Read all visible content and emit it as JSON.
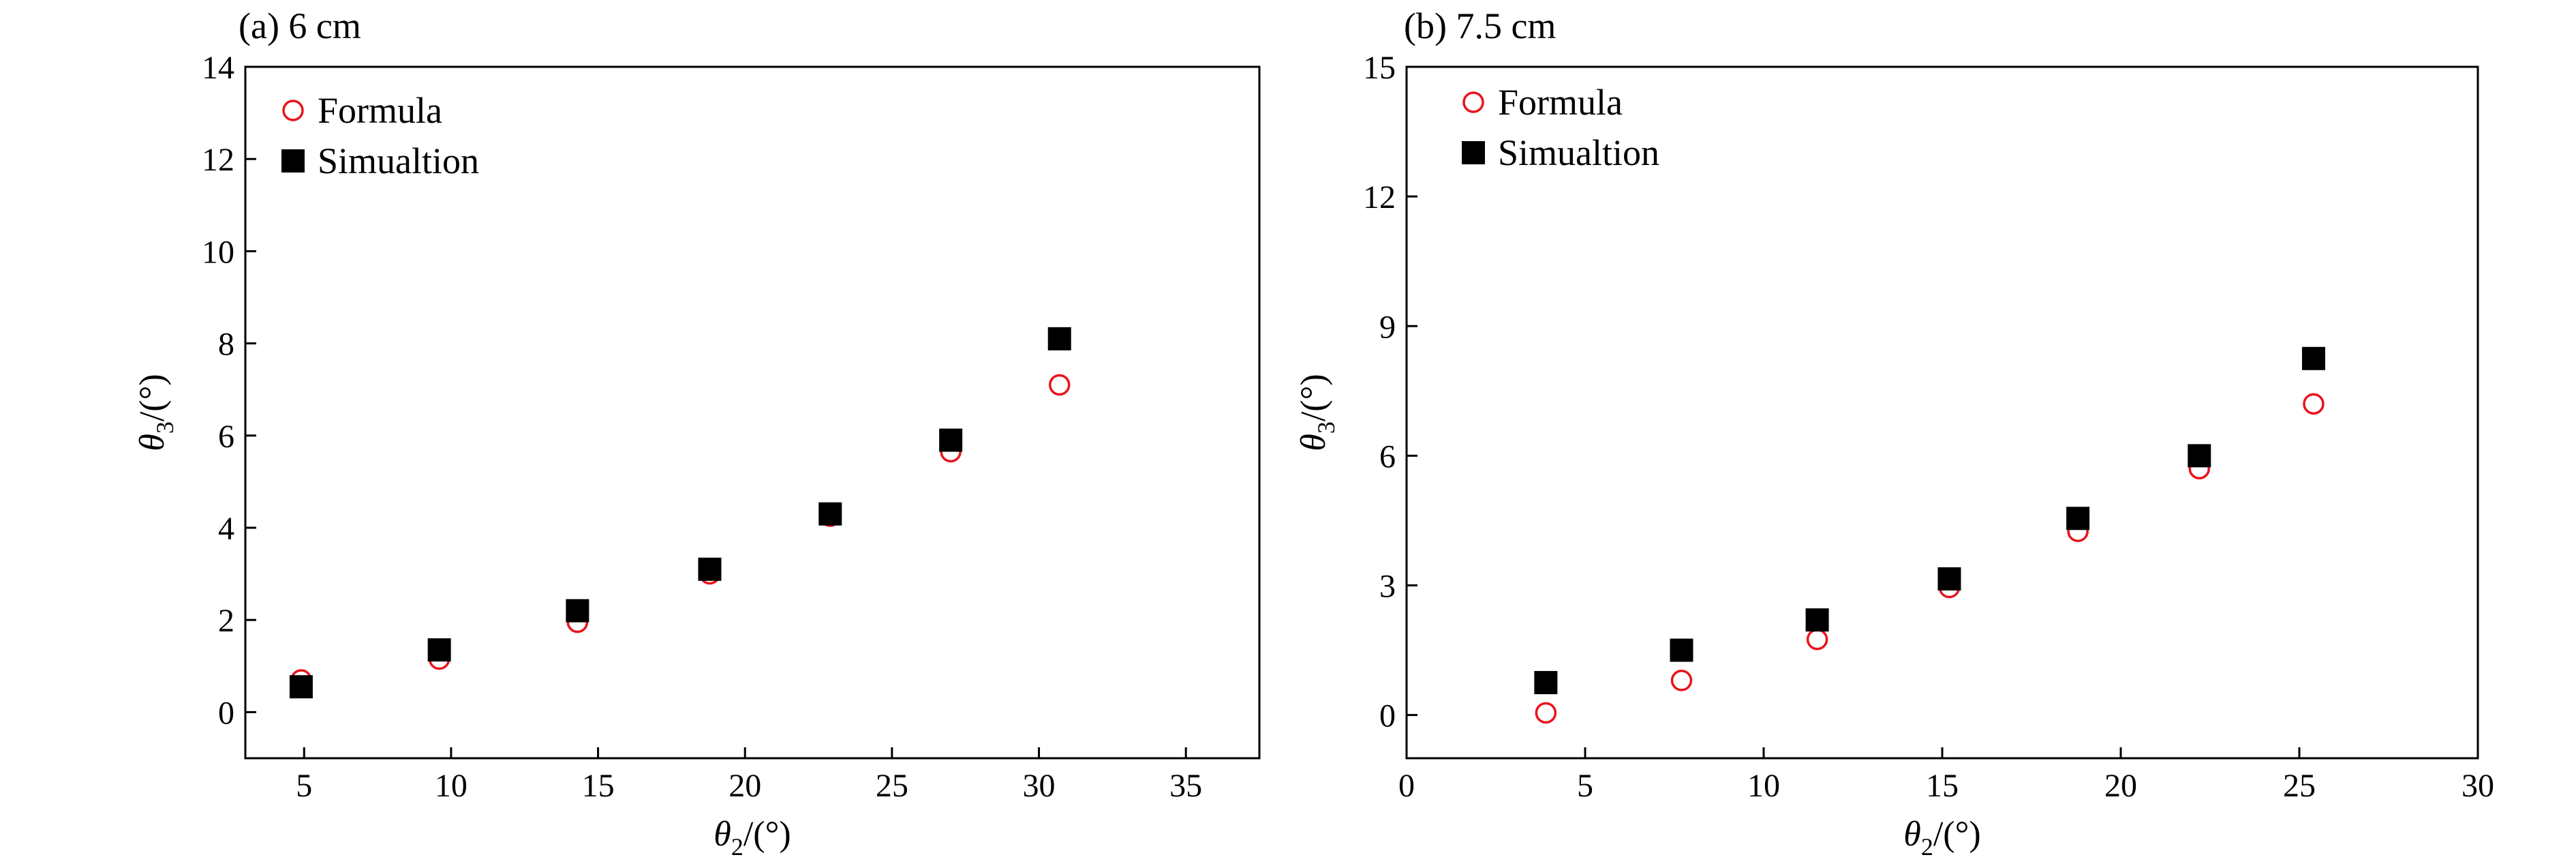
{
  "chart_data": [
    {
      "type": "scatter",
      "title": "(a) 6 cm",
      "xlabel": {
        "symbol": "θ",
        "sub": "2",
        "unit": "/(°)"
      },
      "ylabel": {
        "symbol": "θ",
        "sub": "3",
        "unit": "/(°)"
      },
      "xlim": [
        3,
        37.5
      ],
      "ylim": [
        -1,
        14
      ],
      "xticks": [
        5,
        10,
        15,
        20,
        25,
        30,
        35
      ],
      "yticks": [
        0,
        2,
        4,
        6,
        8,
        10,
        12,
        14
      ],
      "legend_position": "top-left",
      "series": [
        {
          "name": "Formula",
          "marker": "open-circle",
          "color": "#e8141c",
          "points": [
            [
              4.9,
              0.7
            ],
            [
              9.6,
              1.15
            ],
            [
              14.3,
              1.95
            ],
            [
              18.8,
              3.0
            ],
            [
              22.9,
              4.25
            ],
            [
              27.0,
              5.65
            ],
            [
              30.7,
              7.1
            ]
          ]
        },
        {
          "name": "Simualtion",
          "marker": "filled-square",
          "color": "#000000",
          "points": [
            [
              4.9,
              0.55
            ],
            [
              9.6,
              1.35
            ],
            [
              14.3,
              2.2
            ],
            [
              18.8,
              3.1
            ],
            [
              22.9,
              4.3
            ],
            [
              27.0,
              5.9
            ],
            [
              30.7,
              8.1
            ]
          ]
        }
      ]
    },
    {
      "type": "scatter",
      "title": "(b) 7.5 cm",
      "xlabel": {
        "symbol": "θ",
        "sub": "2",
        "unit": "/(°)"
      },
      "ylabel": {
        "symbol": "θ",
        "sub": "3",
        "unit": "/(°)"
      },
      "xlim": [
        0,
        30
      ],
      "ylim": [
        -1,
        15
      ],
      "xticks": [
        0,
        5,
        10,
        15,
        20,
        25,
        30
      ],
      "yticks": [
        0,
        3,
        6,
        9,
        12,
        15
      ],
      "legend_position": "top-left",
      "series": [
        {
          "name": "Formula",
          "marker": "open-circle",
          "color": "#e8141c",
          "points": [
            [
              3.9,
              0.05
            ],
            [
              7.7,
              0.8
            ],
            [
              11.5,
              1.75
            ],
            [
              15.2,
              2.95
            ],
            [
              18.8,
              4.25
            ],
            [
              22.2,
              5.7
            ],
            [
              25.4,
              7.2
            ]
          ]
        },
        {
          "name": "Simualtion",
          "marker": "filled-square",
          "color": "#000000",
          "points": [
            [
              3.9,
              0.75
            ],
            [
              7.7,
              1.5
            ],
            [
              11.5,
              2.2
            ],
            [
              15.2,
              3.15
            ],
            [
              18.8,
              4.55
            ],
            [
              22.2,
              6.0
            ],
            [
              25.4,
              8.25
            ]
          ]
        }
      ]
    }
  ]
}
